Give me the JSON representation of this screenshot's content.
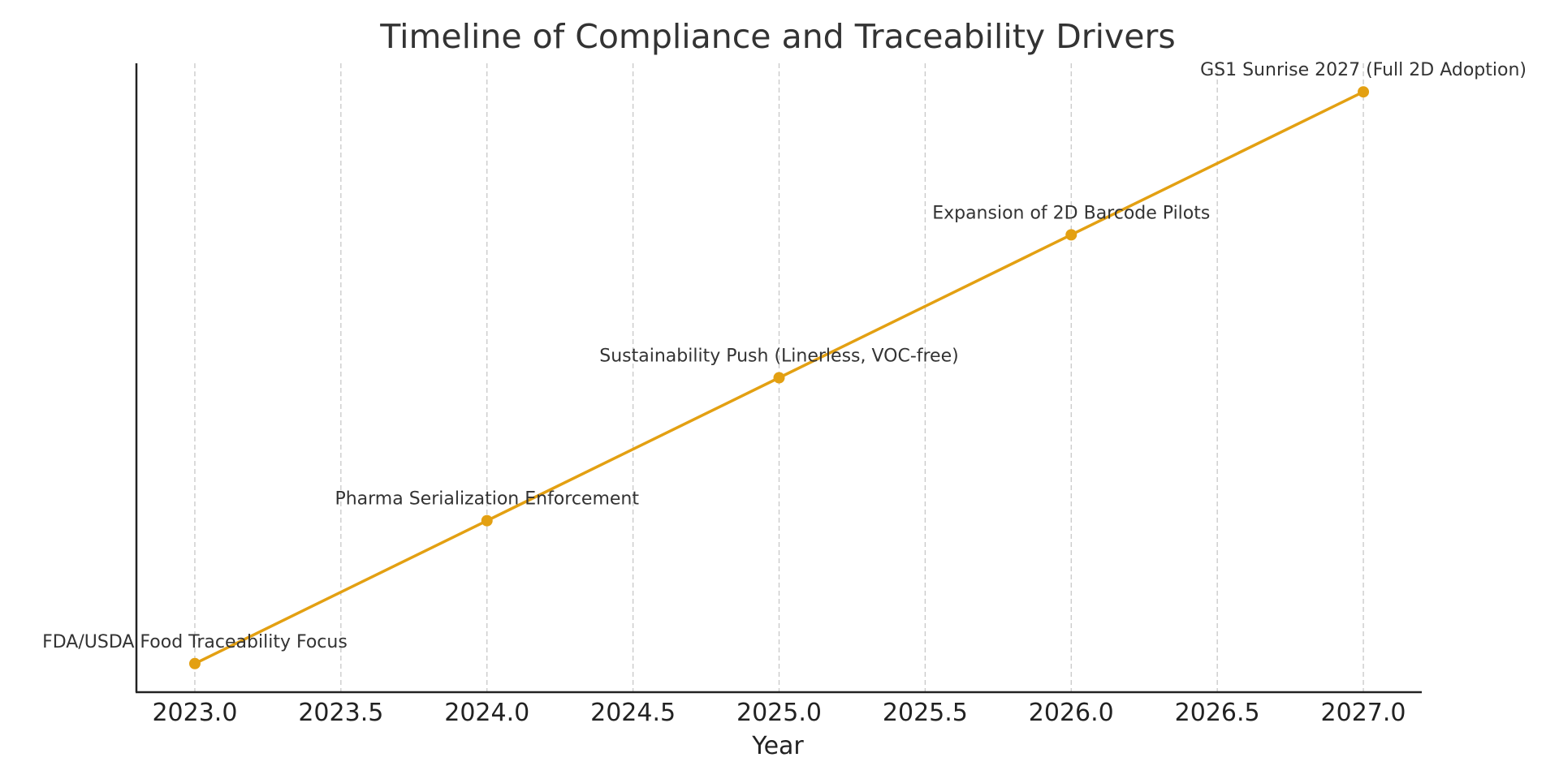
{
  "chart_data": {
    "type": "line",
    "title": "Timeline of Compliance and Traceability Drivers",
    "xlabel": "Year",
    "ylabel": "",
    "xlim": [
      2022.8,
      2027.2
    ],
    "ylim": [
      0.8,
      5.2
    ],
    "xticks": [
      2023.0,
      2023.5,
      2024.0,
      2024.5,
      2025.0,
      2025.5,
      2026.0,
      2026.5,
      2027.0
    ],
    "xtick_labels": [
      "2023.0",
      "2023.5",
      "2024.0",
      "2024.5",
      "2025.0",
      "2025.5",
      "2026.0",
      "2026.5",
      "2027.0"
    ],
    "grid": "vertical dashed",
    "color": "#E3A012",
    "points": [
      {
        "x": 2023,
        "y": 1,
        "label": "FDA/USDA Food Traceability Focus"
      },
      {
        "x": 2024,
        "y": 2,
        "label": "Pharma Serialization Enforcement"
      },
      {
        "x": 2025,
        "y": 3,
        "label": "Sustainability Push (Linerless, VOC-free)"
      },
      {
        "x": 2026,
        "y": 4,
        "label": "Expansion of 2D Barcode Pilots"
      },
      {
        "x": 2027,
        "y": 5,
        "label": "GS1 Sunrise 2027 (Full 2D Adoption)"
      }
    ]
  }
}
